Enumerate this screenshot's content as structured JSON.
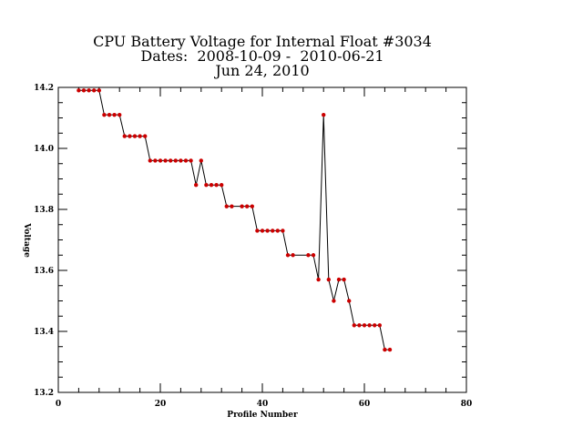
{
  "chart_data": {
    "type": "line",
    "title_lines": [
      "CPU Battery Voltage for Internal Float #3034",
      "Dates:  2008-10-09 -  2010-06-21",
      "Jun 24, 2010"
    ],
    "xlabel": "Profile Number",
    "ylabel": "Voltage",
    "xlim": [
      0,
      80
    ],
    "ylim": [
      13.2,
      14.2
    ],
    "x_ticks": [
      0,
      20,
      40,
      60,
      80
    ],
    "x_tick_labels": [
      "0",
      "20",
      "40",
      "60",
      "80"
    ],
    "y_ticks": [
      13.2,
      13.4,
      13.6,
      13.8,
      14.0,
      14.2
    ],
    "y_tick_labels": [
      "13.2",
      "13.4",
      "13.6",
      "13.8",
      "14.0",
      "14.2"
    ],
    "line_color": "#000000",
    "marker_color": "#cc0000",
    "series": [
      {
        "x": [
          4,
          5,
          6,
          7,
          8,
          9,
          10,
          11,
          12,
          13,
          14,
          15,
          16,
          17,
          18,
          19,
          20,
          21,
          22,
          23,
          24,
          25,
          26,
          27,
          28,
          29,
          30,
          31,
          32,
          33,
          34,
          36,
          37,
          38,
          39,
          40,
          41,
          42,
          43,
          44,
          45,
          46,
          49,
          50,
          51,
          52,
          53,
          54,
          55,
          56,
          57,
          58,
          59,
          60,
          61,
          62,
          63,
          64,
          65
        ],
        "y": [
          14.19,
          14.19,
          14.19,
          14.19,
          14.19,
          14.11,
          14.11,
          14.11,
          14.11,
          14.04,
          14.04,
          14.04,
          14.04,
          14.04,
          13.96,
          13.96,
          13.96,
          13.96,
          13.96,
          13.96,
          13.96,
          13.96,
          13.96,
          13.88,
          13.96,
          13.88,
          13.88,
          13.88,
          13.88,
          13.81,
          13.81,
          13.81,
          13.81,
          13.81,
          13.73,
          13.73,
          13.73,
          13.73,
          13.73,
          13.73,
          13.65,
          13.65,
          13.65,
          13.65,
          13.57,
          14.11,
          13.57,
          13.5,
          13.57,
          13.57,
          13.5,
          13.42,
          13.42,
          13.42,
          13.42,
          13.42,
          13.42,
          13.34,
          13.34
        ]
      }
    ]
  }
}
